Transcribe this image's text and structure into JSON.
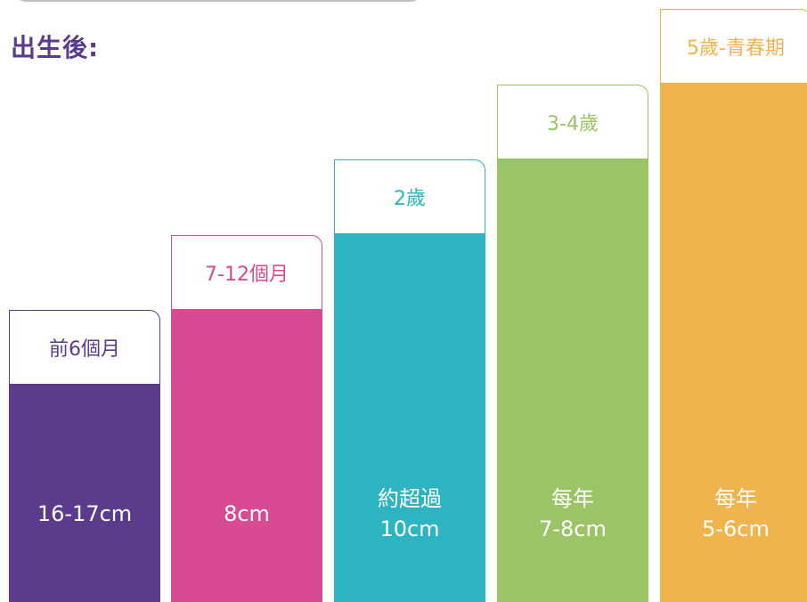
{
  "heading": "出生後:",
  "colors": {
    "heading": "#5b3b8c",
    "purple": "#5b3b8c",
    "pink": "#d84b93",
    "teal": "#2db4c1",
    "green": "#9bc467",
    "orange": "#efb44d"
  },
  "chart_data": {
    "type": "bar",
    "title": "出生後:",
    "categories": [
      "前6個月",
      "7-12個月",
      "2歲",
      "3-4歲",
      "5歲-青春期"
    ],
    "value_labels": [
      [
        "16-17cm"
      ],
      [
        "8cm"
      ],
      [
        "約超過",
        "10cm"
      ],
      [
        "每年",
        "7-8cm"
      ],
      [
        "每年",
        "5-6cm"
      ]
    ],
    "series": [
      {
        "values": [
          16.5,
          8,
          10,
          7.5,
          5.5
        ]
      }
    ],
    "colors": [
      "#5b3b8c",
      "#d84b93",
      "#2db4c1",
      "#9bc467",
      "#efb44d"
    ],
    "label_colors": [
      "#5b3b8c",
      "#d84b93",
      "#2db4c1",
      "#9bc467",
      "#efb44d"
    ],
    "grid": false,
    "legend": "none"
  }
}
